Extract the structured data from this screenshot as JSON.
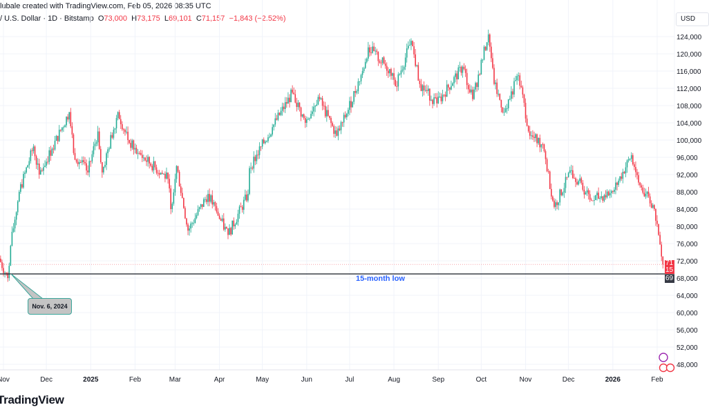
{
  "header": {
    "credit": "lubale created with TradingView.com, Feb 05, 2026 08:35 UTC",
    "symbol": "/ U.S. Dollar · 1D · Bitstamp",
    "o_label": "O",
    "o": "73,000",
    "h_label": "H",
    "h": "73,175",
    "l_label": "L",
    "l": "69,101",
    "c_label": "C",
    "c": "71,157",
    "change": "−1,843 (−2.52%)"
  },
  "currency_button": "USD",
  "logo": "TradingView",
  "colors": {
    "up": "#22ab94",
    "down": "#f23645",
    "low_line": "#131722",
    "annotation_text": "#2962ff"
  },
  "annotations": {
    "low_line_label": "15-month low",
    "callout": "Nov. 6, 2024",
    "current_price_tag": [
      "71",
      "15"
    ],
    "low_price_tag": "69"
  },
  "chart_data": {
    "type": "candlestick",
    "interval": "1D",
    "grid": true,
    "ylim": [
      46000,
      130000
    ],
    "y_ticks": [
      48000,
      52000,
      56000,
      60000,
      64000,
      68000,
      72000,
      76000,
      80000,
      84000,
      88000,
      92000,
      96000,
      100000,
      104000,
      108000,
      112000,
      116000,
      120000,
      124000
    ],
    "y_tick_labels": [
      "48,000",
      "52,000",
      "56,000",
      "60,000",
      "64,000",
      "68,000",
      "72,000",
      "76,000",
      "80,000",
      "84,000",
      "88,000",
      "92,000",
      "96,000",
      "100,000",
      "104,000",
      "108,000",
      "112,000",
      "116,000",
      "120,000",
      "124,000"
    ],
    "x_ticks": [
      {
        "label": "Nov",
        "date": "2024-11-01"
      },
      {
        "label": "Dec",
        "date": "2024-12-01"
      },
      {
        "label": "2025",
        "date": "2025-01-01",
        "bold": true
      },
      {
        "label": "Feb",
        "date": "2025-02-01"
      },
      {
        "label": "Mar",
        "date": "2025-03-01"
      },
      {
        "label": "Apr",
        "date": "2025-04-01"
      },
      {
        "label": "May",
        "date": "2025-05-01"
      },
      {
        "label": "Jun",
        "date": "2025-06-01"
      },
      {
        "label": "Jul",
        "date": "2025-07-01"
      },
      {
        "label": "Aug",
        "date": "2025-08-01"
      },
      {
        "label": "Sep",
        "date": "2025-09-01"
      },
      {
        "label": "Oct",
        "date": "2025-10-01"
      },
      {
        "label": "Nov",
        "date": "2025-11-01"
      },
      {
        "label": "Dec",
        "date": "2025-12-01"
      },
      {
        "label": "2026",
        "date": "2026-01-01",
        "bold": true
      },
      {
        "label": "Feb",
        "date": "2026-02-01"
      }
    ],
    "low_line_value": 69101,
    "current_price": 71157,
    "approx_closes": [
      [
        "2024-10-29",
        72500
      ],
      [
        "2024-11-04",
        68000
      ],
      [
        "2024-11-06",
        75500
      ],
      [
        "2024-11-12",
        88000
      ],
      [
        "2024-11-22",
        98500
      ],
      [
        "2024-11-26",
        92000
      ],
      [
        "2024-12-05",
        98000
      ],
      [
        "2024-12-17",
        106500
      ],
      [
        "2024-12-20",
        97000
      ],
      [
        "2024-12-30",
        92500
      ],
      [
        "2025-01-06",
        102000
      ],
      [
        "2025-01-09",
        92500
      ],
      [
        "2025-01-20",
        106500
      ],
      [
        "2025-01-27",
        100000
      ],
      [
        "2025-02-03",
        97000
      ],
      [
        "2025-02-24",
        91000
      ],
      [
        "2025-02-26",
        84000
      ],
      [
        "2025-03-02",
        94000
      ],
      [
        "2025-03-10",
        79000
      ],
      [
        "2025-03-24",
        87500
      ],
      [
        "2025-03-31",
        82500
      ],
      [
        "2025-04-07",
        78000
      ],
      [
        "2025-04-21",
        87500
      ],
      [
        "2025-04-22",
        93500
      ],
      [
        "2025-05-08",
        103000
      ],
      [
        "2025-05-22",
        111000
      ],
      [
        "2025-05-31",
        104000
      ],
      [
        "2025-06-09",
        110000
      ],
      [
        "2025-06-22",
        101000
      ],
      [
        "2025-06-30",
        107000
      ],
      [
        "2025-07-10",
        116000
      ],
      [
        "2025-07-14",
        121500
      ],
      [
        "2025-07-31",
        115500
      ],
      [
        "2025-08-02",
        112500
      ],
      [
        "2025-08-13",
        123000
      ],
      [
        "2025-08-19",
        113000
      ],
      [
        "2025-08-31",
        108500
      ],
      [
        "2025-09-18",
        117000
      ],
      [
        "2025-09-25",
        109500
      ],
      [
        "2025-10-06",
        124500
      ],
      [
        "2025-10-10",
        113000
      ],
      [
        "2025-10-17",
        106500
      ],
      [
        "2025-10-27",
        115000
      ],
      [
        "2025-11-04",
        101000
      ],
      [
        "2025-11-13",
        99000
      ],
      [
        "2025-11-21",
        84500
      ],
      [
        "2025-12-03",
        93000
      ],
      [
        "2025-12-17",
        86000
      ],
      [
        "2026-01-01",
        88000
      ],
      [
        "2026-01-14",
        96500
      ],
      [
        "2026-01-20",
        89500
      ],
      [
        "2026-01-30",
        84000
      ],
      [
        "2026-02-02",
        78000
      ],
      [
        "2026-02-04",
        73000
      ],
      [
        "2026-02-05",
        71157
      ]
    ]
  }
}
